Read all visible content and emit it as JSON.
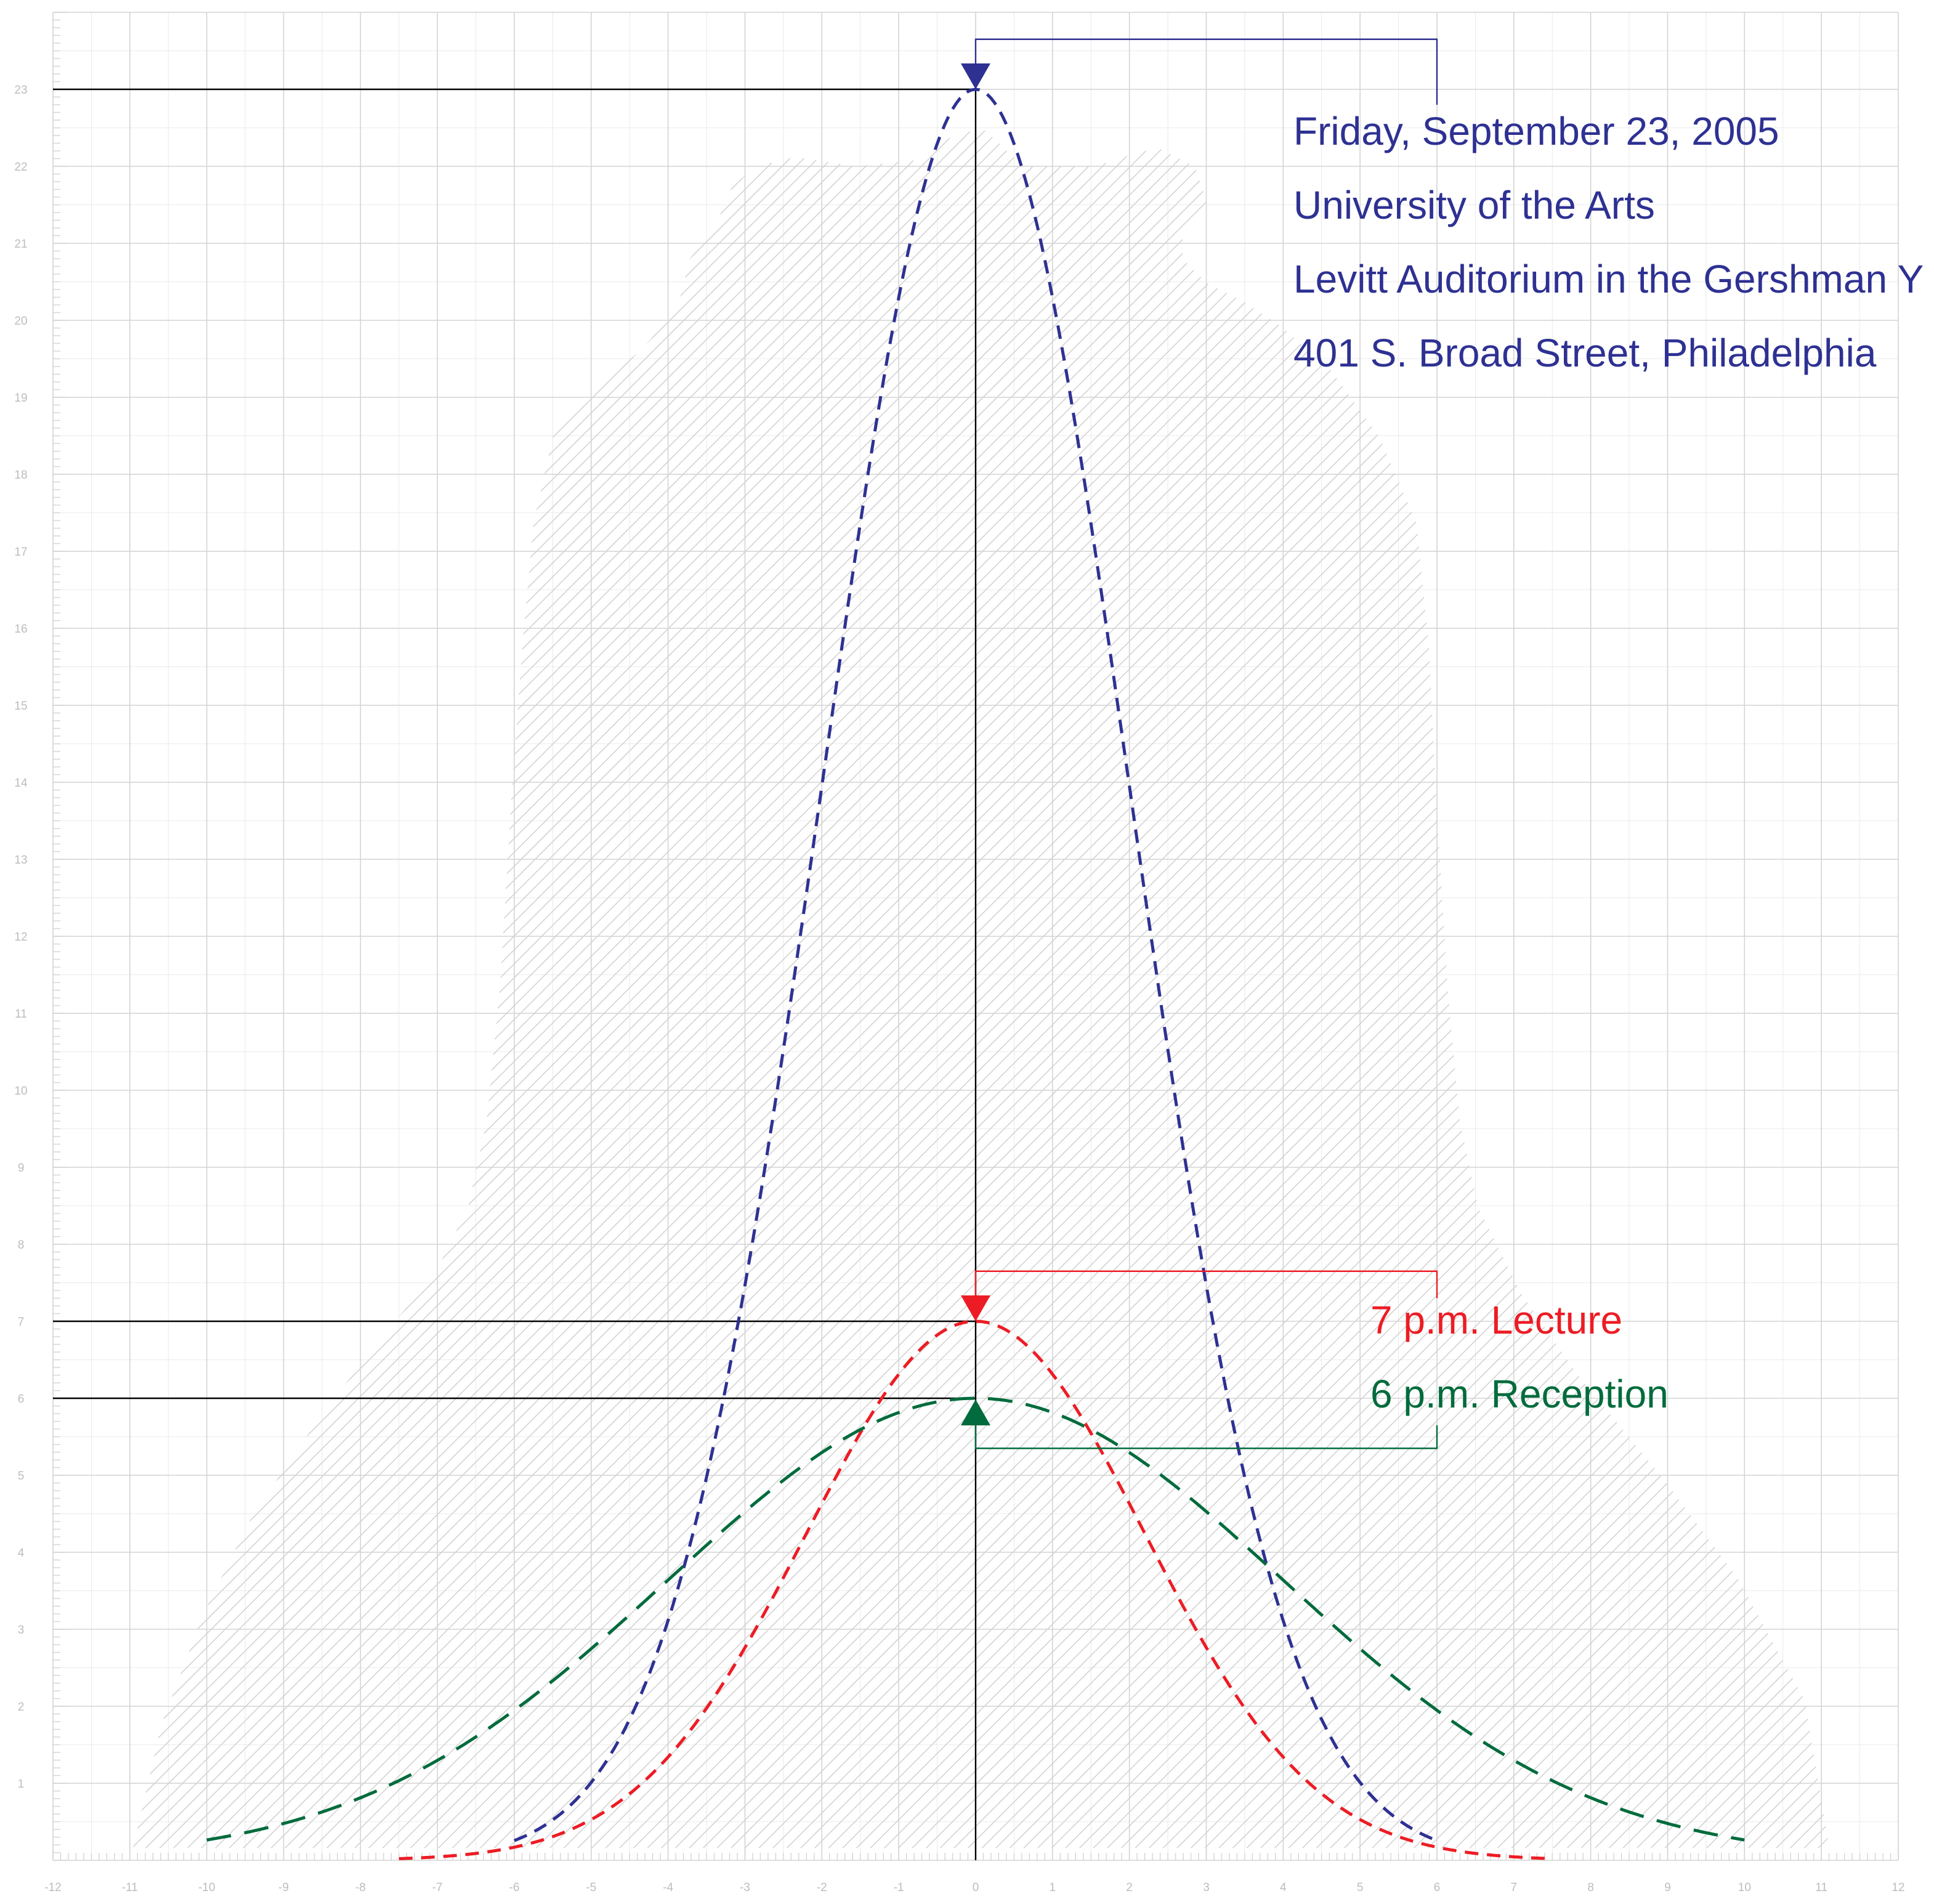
{
  "event": {
    "date": "Friday, September 23, 2005",
    "venue": "University of the Arts",
    "room": "Levitt Auditorium in the Gershman Y",
    "address": "401 S. Broad Street, Philadelphia",
    "lecture": "7 p.m. Lecture",
    "reception": "6 p.m. Reception"
  },
  "colors": {
    "blue": "#2e3192",
    "red": "#ed1c24",
    "green": "#006b3c",
    "grid": "#d4d4d4",
    "axis": "#000000",
    "hatch": "#d0d0d0",
    "ticklabel": "#bdbdbd"
  },
  "chart_data": {
    "type": "line",
    "xlim": [
      -12,
      12
    ],
    "ylim": [
      0,
      24
    ],
    "grid": true,
    "x_ticks": [
      -12,
      -11,
      -10,
      -9,
      -8,
      -7,
      -6,
      -5,
      -4,
      -3,
      -2,
      -1,
      0,
      1,
      2,
      3,
      4,
      5,
      6,
      7,
      8,
      9,
      10,
      11,
      12
    ],
    "y_ticks": [
      1,
      2,
      3,
      4,
      5,
      6,
      7,
      8,
      9,
      10,
      11,
      12,
      13,
      14,
      15,
      16,
      17,
      18,
      19,
      20,
      21,
      22,
      23
    ],
    "highlighted_y": [
      {
        "value": 23,
        "color": "blue"
      },
      {
        "value": 7,
        "color": "red"
      },
      {
        "value": 6,
        "color": "green"
      }
    ],
    "series": [
      {
        "color": "blue",
        "peak_x": 0,
        "peak_y": 23,
        "x_range": [
          -6,
          6
        ],
        "sigma": 2.0,
        "marker": "triangle-down"
      },
      {
        "color": "red",
        "peak_x": 0,
        "peak_y": 7,
        "x_range": [
          -7.5,
          7.5
        ],
        "sigma": 2.2,
        "marker": "triangle-down"
      },
      {
        "color": "green",
        "peak_x": 0,
        "peak_y": 6,
        "x_range": [
          -10,
          10
        ],
        "sigma": 4.0,
        "marker": "triangle-up"
      }
    ],
    "bracket_x": 6,
    "background_shape": "liberty-bell silhouette"
  }
}
